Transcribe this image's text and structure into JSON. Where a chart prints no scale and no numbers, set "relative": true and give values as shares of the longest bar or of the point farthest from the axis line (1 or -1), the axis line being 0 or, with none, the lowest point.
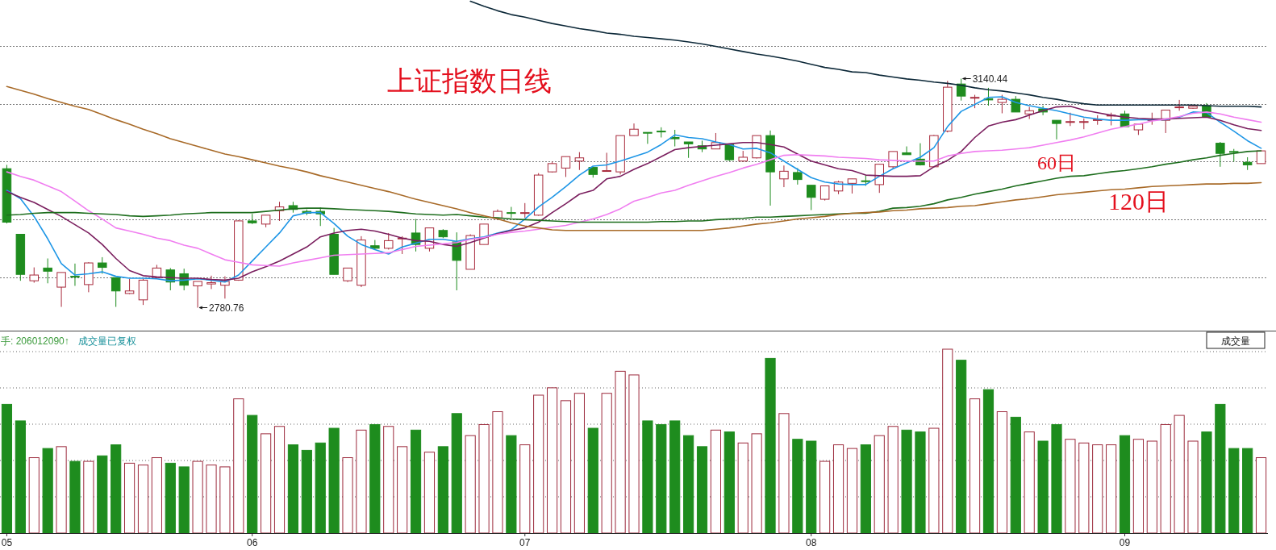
{
  "chart_data": [
    {
      "type": "candlestick",
      "title": "上证指数日线",
      "tick_labels": "x",
      "categories": [
        "05",
        null,
        null,
        null,
        null,
        null,
        null,
        null,
        null,
        null,
        null,
        null,
        null,
        null,
        null,
        null,
        null,
        null,
        "06",
        null,
        null,
        null,
        null,
        null,
        null,
        null,
        null,
        null,
        null,
        null,
        null,
        null,
        null,
        null,
        null,
        null,
        null,
        null,
        "07",
        null,
        null,
        null,
        null,
        null,
        null,
        null,
        null,
        null,
        null,
        null,
        null,
        null,
        null,
        null,
        null,
        null,
        null,
        null,
        null,
        "08",
        null,
        null,
        null,
        null,
        null,
        null,
        null,
        null,
        null,
        null,
        null,
        null,
        null,
        null,
        null,
        null,
        null,
        null,
        null,
        null,
        null,
        null,
        "09",
        null,
        null,
        null,
        null,
        null,
        null,
        null,
        null,
        null,
        null
      ],
      "grid": true,
      "ohlc": [
        [
          2999,
          3005,
          2913,
          2915
        ],
        [
          2896,
          2896,
          2823,
          2833
        ],
        [
          2823,
          2844,
          2820,
          2832
        ],
        [
          2843,
          2858,
          2819,
          2838
        ],
        [
          2813,
          2836,
          2782,
          2836
        ],
        [
          2830,
          2850,
          2815,
          2829
        ],
        [
          2817,
          2852,
          2805,
          2851
        ],
        [
          2851,
          2860,
          2834,
          2844
        ],
        [
          2828,
          2828,
          2782,
          2807
        ],
        [
          2803,
          2826,
          2802,
          2807
        ],
        [
          2793,
          2826,
          2785,
          2824
        ],
        [
          2828,
          2848,
          2826,
          2843
        ],
        [
          2840,
          2843,
          2808,
          2821
        ],
        [
          2834,
          2842,
          2808,
          2816
        ],
        [
          2815,
          2822,
          2780.76,
          2822
        ],
        [
          2818,
          2831,
          2810,
          2820
        ],
        [
          2816,
          2830,
          2795,
          2822
        ],
        [
          2824,
          2918,
          2823,
          2917
        ],
        [
          2917,
          2928,
          2912,
          2914
        ],
        [
          2912,
          2926,
          2907,
          2926
        ],
        [
          2933,
          2947,
          2917,
          2939
        ],
        [
          2941,
          2947,
          2930,
          2935
        ],
        [
          2932,
          2935,
          2926,
          2929
        ],
        [
          2932,
          2938,
          2909,
          2928
        ],
        [
          2896,
          2906,
          2833,
          2833
        ],
        [
          2823,
          2843,
          2821,
          2843
        ],
        [
          2816,
          2893,
          2813,
          2887
        ],
        [
          2878,
          2887,
          2872,
          2874
        ],
        [
          2874,
          2898,
          2872,
          2886
        ],
        [
          2889,
          2893,
          2865,
          2890
        ],
        [
          2898,
          2920,
          2869,
          2880
        ],
        [
          2874,
          2906,
          2869,
          2906
        ],
        [
          2902,
          2904,
          2890,
          2892
        ],
        [
          2884,
          2899,
          2808,
          2855
        ],
        [
          2841,
          2896,
          2841,
          2894
        ],
        [
          2880,
          2912,
          2880,
          2912
        ],
        [
          2921,
          2935,
          2921,
          2932
        ],
        [
          2930,
          2939,
          2922,
          2929
        ],
        [
          2929,
          2945,
          2922,
          2930
        ],
        [
          2926,
          2992,
          2925,
          2989
        ],
        [
          2994,
          3010,
          2993,
          3007
        ],
        [
          3000,
          3018,
          2986,
          3018
        ],
        [
          3011,
          3025,
          2997,
          3016
        ],
        [
          3001,
          3001,
          2985,
          2990
        ],
        [
          2995,
          3024,
          2995,
          2996
        ],
        [
          2994,
          3051,
          2990,
          3051
        ],
        [
          3051,
          3070,
          3051,
          3061
        ],
        [
          3056,
          3056,
          3038,
          3055
        ],
        [
          3058,
          3064,
          3048,
          3057
        ],
        [
          3048,
          3060,
          3034,
          3046
        ],
        [
          3041,
          3041,
          3016,
          3038
        ],
        [
          3035,
          3043,
          3025,
          3030
        ],
        [
          3030,
          3055,
          3030,
          3040
        ],
        [
          3037,
          3037,
          3011,
          3013
        ],
        [
          3011,
          3027,
          3010,
          3017
        ],
        [
          3016,
          3051,
          3015,
          3051
        ],
        [
          3051,
          3059,
          2941,
          2994
        ],
        [
          2983,
          3004,
          2970,
          2995
        ],
        [
          2993,
          3000,
          2974,
          2982
        ],
        [
          2973,
          2973,
          2934,
          2954
        ],
        [
          2951,
          2972,
          2949,
          2972
        ],
        [
          2964,
          2980,
          2959,
          2978
        ],
        [
          2976,
          2983,
          2960,
          2983
        ],
        [
          2980,
          2989,
          2972,
          2979
        ],
        [
          2974,
          3006,
          2961,
          3006
        ],
        [
          3002,
          3026,
          2999,
          3026
        ],
        [
          3024,
          3034,
          3021,
          3021
        ],
        [
          3014,
          3039,
          3004,
          3005
        ],
        [
          3002,
          3052,
          3001,
          3051
        ],
        [
          3058,
          3137,
          3056,
          3127
        ],
        [
          3132,
          3140.44,
          3106,
          3113
        ],
        [
          3110,
          3115,
          3094,
          3111
        ],
        [
          3109,
          3126,
          3098,
          3107
        ],
        [
          3103,
          3115,
          3086,
          3108
        ],
        [
          3108,
          3113,
          3088,
          3088
        ],
        [
          3085,
          3096,
          3077,
          3090
        ],
        [
          3093,
          3098,
          3083,
          3088
        ],
        [
          3075,
          3075,
          3045,
          3070
        ],
        [
          3072,
          3087,
          3066,
          3073
        ],
        [
          3072,
          3078,
          3061,
          3073
        ],
        [
          3075,
          3083,
          3068,
          3076
        ],
        [
          3082,
          3087,
          3067,
          3083
        ],
        [
          3085,
          3090,
          3065,
          3065
        ],
        [
          3060,
          3069,
          3052,
          3069
        ],
        [
          3075,
          3087,
          3068,
          3076
        ],
        [
          3075,
          3091,
          3055,
          3091
        ],
        [
          3095,
          3107,
          3090,
          3096
        ],
        [
          3094,
          3099,
          3093,
          3097
        ],
        [
          3098,
          3102,
          3080,
          3080
        ],
        [
          3039,
          3041,
          3002,
          3023
        ],
        [
          3026,
          3030,
          3010,
          3025
        ],
        [
          3009,
          3017,
          2997,
          3005
        ],
        [
          3007,
          3027,
          3007,
          3027
        ]
      ],
      "series": [
        {
          "type": "line",
          "color": "#1e96e6",
          "values": [
            2965,
            2952,
            2924,
            2889,
            2850,
            2832,
            2834,
            2837,
            2830,
            2827,
            2827,
            2826,
            2823,
            2824,
            2826,
            2824,
            2821,
            2832,
            2854,
            2876,
            2898,
            2925,
            2930,
            2930,
            2913,
            2893,
            2880,
            2872,
            2865,
            2876,
            2882,
            2888,
            2888,
            2885,
            2889,
            2892,
            2898,
            2903,
            2920,
            2939,
            2954,
            2971,
            2989,
            3003,
            3005,
            3011,
            3018,
            3025,
            3037,
            3052,
            3048,
            3046,
            3041,
            3037,
            3030,
            3031,
            3024,
            3011,
            2998,
            2985,
            2978,
            2975,
            2974,
            2974,
            2987,
            2999,
            3008,
            3017,
            3032,
            3065,
            3089,
            3100,
            3111,
            3112,
            3103,
            3098,
            3094,
            3090,
            3085,
            3080,
            3077,
            3075,
            3075,
            3076,
            3076,
            3076,
            3080,
            3088,
            3087,
            3072,
            3058,
            3043,
            3031
          ]
        },
        {
          "type": "line",
          "color": "#7a1e5e",
          "values": [
            2963,
            2954,
            2946,
            2935,
            2924,
            2911,
            2898,
            2880,
            2858,
            2839,
            2831,
            2829,
            2828,
            2827,
            2827,
            2825,
            2824,
            2827,
            2837,
            2845,
            2854,
            2865,
            2876,
            2892,
            2898,
            2902,
            2904,
            2901,
            2896,
            2890,
            2886,
            2885,
            2880,
            2877,
            2883,
            2890,
            2897,
            2902,
            2906,
            2915,
            2930,
            2944,
            2959,
            2965,
            2983,
            2987,
            2998,
            3007,
            3018,
            3029,
            3032,
            3034,
            3036,
            3038,
            3040,
            3040,
            3037,
            3033,
            3022,
            3011,
            3005,
            2999,
            2996,
            2989,
            2988,
            2987,
            2987,
            2988,
            3002,
            3012,
            3026,
            3048,
            3066,
            3072,
            3076,
            3083,
            3090,
            3096,
            3097,
            3091,
            3087,
            3083,
            3080,
            3078,
            3077,
            3077,
            3078,
            3079,
            3080,
            3075,
            3068,
            3062,
            3059
          ]
        },
        {
          "type": "line",
          "color": "#f07ef0",
          "values": [
            2994,
            2987,
            2981,
            2972,
            2963,
            2948,
            2933,
            2920,
            2906,
            2901,
            2896,
            2890,
            2886,
            2879,
            2874,
            2865,
            2856,
            2852,
            2848,
            2847,
            2846,
            2851,
            2855,
            2859,
            2863,
            2864,
            2865,
            2866,
            2867,
            2872,
            2877,
            2879,
            2881,
            2883,
            2888,
            2891,
            2896,
            2899,
            2901,
            2904,
            2907,
            2910,
            2915,
            2920,
            2927,
            2936,
            2948,
            2954,
            2961,
            2965,
            2973,
            2980,
            2987,
            2993,
            3000,
            3006,
            3013,
            3020,
            3021,
            3020,
            3019,
            3017,
            3016,
            3015,
            3013,
            3012,
            3011,
            3011,
            3011,
            3019,
            3023,
            3026,
            3027,
            3028,
            3030,
            3032,
            3036,
            3040,
            3044,
            3049,
            3055,
            3061,
            3065,
            3069,
            3074,
            3077,
            3081,
            3086,
            3088,
            3085,
            3080,
            3076,
            3072
          ]
        },
        {
          "type": "line",
          "name": "60日",
          "color": "#1e6e1e",
          "values": [
            2926,
            2927,
            2929,
            2930,
            2930,
            2930,
            2929,
            2928,
            2927,
            2925,
            2924,
            2925,
            2926,
            2928,
            2929,
            2930,
            2930,
            2930,
            2930,
            2932,
            2934,
            2936,
            2937,
            2937,
            2936,
            2935,
            2934,
            2933,
            2932,
            2930,
            2928,
            2927,
            2926,
            2927,
            2925,
            2923,
            2922,
            2920,
            2919,
            2918,
            2917,
            2916,
            2915,
            2915,
            2915,
            2915,
            2915,
            2915,
            2916,
            2916,
            2917,
            2917,
            2919,
            2920,
            2921,
            2923,
            2923,
            2924,
            2925,
            2926,
            2927,
            2928,
            2929,
            2929,
            2932,
            2937,
            2938,
            2940,
            2944,
            2950,
            2954,
            2959,
            2963,
            2967,
            2972,
            2976,
            2980,
            2984,
            2987,
            2988,
            2991,
            2994,
            2996,
            2999,
            3002,
            3006,
            3009,
            3013,
            3016,
            3020,
            3023,
            3026,
            3027
          ]
        },
        {
          "type": "line",
          "name": "120日",
          "color": "#a86a28",
          "values": [
            3128,
            3122,
            3116,
            3109,
            3103,
            3097,
            3092,
            3084,
            3076,
            3069,
            3061,
            3054,
            3046,
            3040,
            3034,
            3028,
            3022,
            3018,
            3013,
            3008,
            3003,
            2999,
            2994,
            2988,
            2983,
            2978,
            2973,
            2968,
            2963,
            2957,
            2951,
            2946,
            2941,
            2936,
            2930,
            2925,
            2920,
            2914,
            2909,
            2906,
            2903,
            2902,
            2902,
            2902,
            2902,
            2902,
            2902,
            2902,
            2902,
            2902,
            2902,
            2902,
            2904,
            2906,
            2909,
            2912,
            2914,
            2917,
            2920,
            2922,
            2924,
            2927,
            2929,
            2930,
            2931,
            2933,
            2934,
            2936,
            2937,
            2938,
            2940,
            2941,
            2944,
            2947,
            2950,
            2952,
            2955,
            2958,
            2960,
            2962,
            2964,
            2966,
            2967,
            2969,
            2971,
            2972,
            2973,
            2974,
            2975,
            2975,
            2976,
            2976,
            2977
          ]
        },
        {
          "type": "line",
          "color": "#0c2838",
          "values": [
            null,
            null,
            null,
            null,
            null,
            null,
            null,
            null,
            null,
            null,
            null,
            null,
            null,
            null,
            null,
            null,
            null,
            null,
            null,
            null,
            null,
            null,
            null,
            null,
            null,
            null,
            null,
            null,
            null,
            null,
            null,
            null,
            null,
            null,
            3262,
            3254,
            3247,
            3241,
            3237,
            3232,
            3227,
            3223,
            3219,
            3216,
            3212,
            3210,
            3207,
            3205,
            3203,
            3201,
            3198,
            3195,
            3191,
            3187,
            3183,
            3179,
            3176,
            3172,
            3168,
            3163,
            3158,
            3155,
            3151,
            3150,
            3146,
            3143,
            3140,
            3138,
            3135,
            3133,
            3130,
            3126,
            3123,
            3121,
            3118,
            3115,
            3111,
            3108,
            3104,
            3101,
            3099,
            3099,
            3099,
            3099,
            3099,
            3099,
            3099,
            3099,
            3098,
            3097,
            3097,
            3097,
            3096
          ]
        }
      ],
      "annotations": [
        "3140.44",
        "2780.76"
      ]
    },
    {
      "type": "bar",
      "relative": true,
      "grid": true,
      "categories": [
        null,
        null,
        null,
        null,
        null,
        null,
        null,
        null,
        null,
        null,
        null,
        null,
        null,
        null,
        null,
        null,
        null,
        null,
        null,
        null,
        null,
        null,
        null,
        null,
        null,
        null,
        null,
        null,
        null,
        null,
        null,
        null,
        null,
        null,
        null,
        null,
        null,
        null,
        null,
        null,
        null,
        null,
        null,
        null,
        null,
        null,
        null,
        null,
        null,
        null,
        null,
        null,
        null,
        null,
        null,
        null,
        null,
        null,
        null,
        null,
        null,
        null,
        null,
        null,
        null,
        null,
        null,
        null,
        null,
        null,
        null,
        null,
        null,
        null,
        null,
        null,
        null,
        null,
        null,
        null,
        null,
        null,
        null,
        null,
        null,
        null,
        null,
        null,
        null,
        null,
        null,
        null,
        null
      ],
      "values": [
        0.7,
        0.61,
        0.41,
        0.46,
        0.47,
        0.39,
        0.39,
        0.42,
        0.48,
        0.38,
        0.37,
        0.41,
        0.38,
        0.36,
        0.39,
        0.37,
        0.36,
        0.73,
        0.64,
        0.54,
        0.58,
        0.48,
        0.45,
        0.49,
        0.57,
        0.41,
        0.56,
        0.59,
        0.58,
        0.47,
        0.56,
        0.44,
        0.47,
        0.65,
        0.53,
        0.59,
        0.66,
        0.53,
        0.48,
        0.75,
        0.79,
        0.72,
        0.76,
        0.57,
        0.76,
        0.88,
        0.86,
        0.61,
        0.59,
        0.61,
        0.53,
        0.47,
        0.56,
        0.55,
        0.49,
        0.54,
        0.95,
        0.65,
        0.51,
        0.5,
        0.39,
        0.48,
        0.46,
        0.48,
        0.53,
        0.58,
        0.56,
        0.55,
        0.57,
        1,
        0.94,
        0.73,
        0.78,
        0.66,
        0.63,
        0.55,
        0.5,
        0.59,
        0.51,
        0.49,
        0.48,
        0.48,
        0.53,
        0.51,
        0.5,
        0.59,
        0.64,
        0.5,
        0.55,
        0.7,
        0.46,
        0.46,
        0.41
      ],
      "colors": [
        "#1e8c1e",
        "#1e8c1e",
        "#9c2a3c",
        "#1e8c1e",
        "#9c2a3c",
        "#1e8c1e",
        "#9c2a3c",
        "#1e8c1e",
        "#1e8c1e",
        "#9c2a3c",
        "#9c2a3c",
        "#9c2a3c",
        "#1e8c1e",
        "#1e8c1e",
        "#9c2a3c",
        "#9c2a3c",
        "#9c2a3c",
        "#9c2a3c",
        "#1e8c1e",
        "#9c2a3c",
        "#9c2a3c",
        "#1e8c1e",
        "#1e8c1e",
        "#1e8c1e",
        "#1e8c1e",
        "#9c2a3c",
        "#9c2a3c",
        "#1e8c1e",
        "#9c2a3c",
        "#9c2a3c",
        "#1e8c1e",
        "#9c2a3c",
        "#1e8c1e",
        "#1e8c1e",
        "#9c2a3c",
        "#9c2a3c",
        "#9c2a3c",
        "#1e8c1e",
        "#9c2a3c",
        "#9c2a3c",
        "#9c2a3c",
        "#9c2a3c",
        "#9c2a3c",
        "#1e8c1e",
        "#9c2a3c",
        "#9c2a3c",
        "#9c2a3c",
        "#1e8c1e",
        "#1e8c1e",
        "#1e8c1e",
        "#1e8c1e",
        "#1e8c1e",
        "#9c2a3c",
        "#1e8c1e",
        "#9c2a3c",
        "#9c2a3c",
        "#1e8c1e",
        "#9c2a3c",
        "#1e8c1e",
        "#1e8c1e",
        "#9c2a3c",
        "#9c2a3c",
        "#9c2a3c",
        "#1e8c1e",
        "#9c2a3c",
        "#9c2a3c",
        "#1e8c1e",
        "#1e8c1e",
        "#9c2a3c",
        "#9c2a3c",
        "#1e8c1e",
        "#9c2a3c",
        "#1e8c1e",
        "#9c2a3c",
        "#1e8c1e",
        "#9c2a3c",
        "#1e8c1e",
        "#1e8c1e",
        "#9c2a3c",
        "#9c2a3c",
        "#9c2a3c",
        "#9c2a3c",
        "#1e8c1e",
        "#9c2a3c",
        "#9c2a3c",
        "#9c2a3c",
        "#9c2a3c",
        "#9c2a3c",
        "#1e8c1e",
        "#1e8c1e",
        "#1e8c1e",
        "#1e8c1e",
        "#9c2a3c"
      ],
      "annotations": [
        "手: 206012090↑",
        "成交量已复权",
        "成交量"
      ]
    }
  ]
}
